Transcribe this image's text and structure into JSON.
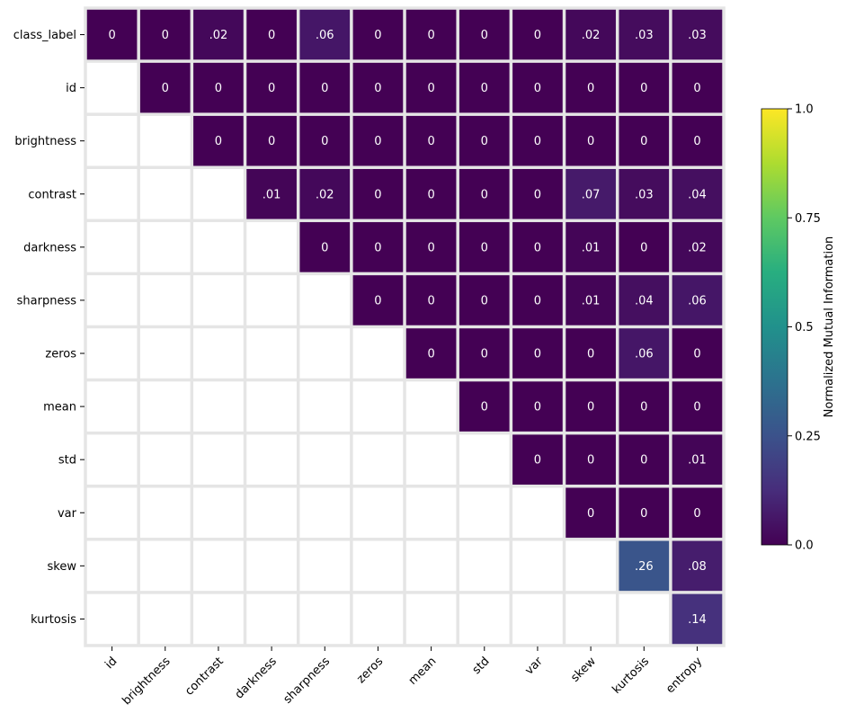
{
  "chart_data": {
    "type": "heatmap",
    "row_labels": [
      "class_label",
      "id",
      "brightness",
      "contrast",
      "darkness",
      "sharpness",
      "zeros",
      "mean",
      "std",
      "var",
      "skew",
      "kurtosis"
    ],
    "col_labels": [
      "id",
      "brightness",
      "contrast",
      "darkness",
      "sharpness",
      "zeros",
      "mean",
      "std",
      "var",
      "skew",
      "kurtosis",
      "entropy"
    ],
    "values": [
      [
        0,
        0,
        0.02,
        0,
        0.06,
        0,
        0,
        0,
        0,
        0.02,
        0.03,
        0.03
      ],
      [
        null,
        0,
        0,
        0,
        0,
        0,
        0,
        0,
        0,
        0,
        0,
        0
      ],
      [
        null,
        null,
        0,
        0,
        0,
        0,
        0,
        0,
        0,
        0,
        0,
        0
      ],
      [
        null,
        null,
        null,
        0.01,
        0.02,
        0,
        0,
        0,
        0,
        0.07,
        0.03,
        0.04
      ],
      [
        null,
        null,
        null,
        null,
        0,
        0,
        0,
        0,
        0,
        0.01,
        0,
        0.02
      ],
      [
        null,
        null,
        null,
        null,
        null,
        0,
        0,
        0,
        0,
        0.01,
        0.04,
        0.06
      ],
      [
        null,
        null,
        null,
        null,
        null,
        null,
        0,
        0,
        0,
        0,
        0.06,
        0
      ],
      [
        null,
        null,
        null,
        null,
        null,
        null,
        null,
        0,
        0,
        0,
        0,
        0
      ],
      [
        null,
        null,
        null,
        null,
        null,
        null,
        null,
        null,
        0,
        0,
        0,
        0.01
      ],
      [
        null,
        null,
        null,
        null,
        null,
        null,
        null,
        null,
        null,
        0,
        0,
        0
      ],
      [
        null,
        null,
        null,
        null,
        null,
        null,
        null,
        null,
        null,
        null,
        0.26,
        0.08
      ],
      [
        null,
        null,
        null,
        null,
        null,
        null,
        null,
        null,
        null,
        null,
        null,
        0.14
      ]
    ],
    "cell_labels": [
      [
        "0",
        "0",
        ".02",
        "0",
        ".06",
        "0",
        "0",
        "0",
        "0",
        ".02",
        ".03",
        ".03"
      ],
      [
        "",
        "0",
        "0",
        "0",
        "0",
        "0",
        "0",
        "0",
        "0",
        "0",
        "0",
        "0"
      ],
      [
        "",
        "",
        "0",
        "0",
        "0",
        "0",
        "0",
        "0",
        "0",
        "0",
        "0",
        "0"
      ],
      [
        "",
        "",
        "",
        ".01",
        ".02",
        "0",
        "0",
        "0",
        "0",
        ".07",
        ".03",
        ".04"
      ],
      [
        "",
        "",
        "",
        "",
        "0",
        "0",
        "0",
        "0",
        "0",
        ".01",
        "0",
        ".02"
      ],
      [
        "",
        "",
        "",
        "",
        "",
        "0",
        "0",
        "0",
        "0",
        ".01",
        ".04",
        ".06"
      ],
      [
        "",
        "",
        "",
        "",
        "",
        "",
        "0",
        "0",
        "0",
        "0",
        ".06",
        "0"
      ],
      [
        "",
        "",
        "",
        "",
        "",
        "",
        "",
        "0",
        "0",
        "0",
        "0",
        "0"
      ],
      [
        "",
        "",
        "",
        "",
        "",
        "",
        "",
        "",
        "0",
        "0",
        "0",
        ".01"
      ],
      [
        "",
        "",
        "",
        "",
        "",
        "",
        "",
        "",
        "",
        "0",
        "0",
        "0"
      ],
      [
        "",
        "",
        "",
        "",
        "",
        "",
        "",
        "",
        "",
        "",
        ".26",
        ".08"
      ],
      [
        "",
        "",
        "",
        "",
        "",
        "",
        "",
        "",
        "",
        "",
        "",
        ".14"
      ]
    ],
    "colormap": "viridis",
    "vmin": 0,
    "vmax": 1,
    "colorbar": {
      "label": "Normalized Mutual Information",
      "ticks": [
        0.0,
        0.25,
        0.5,
        0.75,
        1.0
      ],
      "tick_labels": [
        "0.0",
        "0.25",
        "0.5",
        "0.75",
        "1.0"
      ],
      "placement": "right"
    },
    "grid_color": "#e5e5e5",
    "text_color": "#ffffff"
  }
}
